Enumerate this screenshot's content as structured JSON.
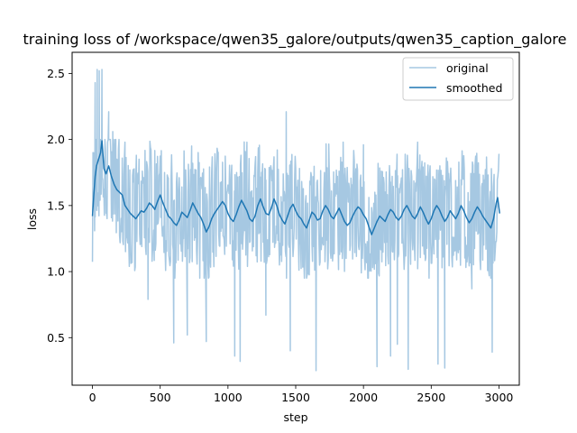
{
  "chart_data": {
    "type": "line",
    "title": "training loss of /workspace/qwen35_galore/outputs/qwen35_caption_galore",
    "xlabel": "step",
    "ylabel": "loss",
    "xlim": [
      -150,
      3150
    ],
    "ylim": [
      0.14,
      2.66
    ],
    "xticks": [
      0,
      500,
      1000,
      1500,
      2000,
      2500,
      3000
    ],
    "yticks": [
      0.5,
      1.0,
      1.5,
      2.0,
      2.5
    ],
    "xtick_labels": [
      "0",
      "500",
      "1000",
      "1500",
      "2000",
      "2500",
      "3000"
    ],
    "ytick_labels": [
      "0.5",
      "1.0",
      "1.5",
      "2.0",
      "2.5"
    ],
    "grid": false,
    "legend": {
      "position": "top-right"
    },
    "x_range": [
      0,
      3000
    ],
    "series": [
      {
        "name": "original",
        "color": "#a6c8e2",
        "style": "noisy raw loss, mean ~1.45, oscillating roughly between 1.0 and 2.0",
        "spikes": [
          {
            "x": 20,
            "y": 2.43
          },
          {
            "x": 35,
            "y": 2.53
          },
          {
            "x": 50,
            "y": 2.52
          },
          {
            "x": 70,
            "y": 2.53
          },
          {
            "x": 120,
            "y": 2.21
          },
          {
            "x": 150,
            "y": 2.06
          },
          {
            "x": 240,
            "y": 1.98
          },
          {
            "x": 410,
            "y": 0.79
          },
          {
            "x": 600,
            "y": 0.46
          },
          {
            "x": 700,
            "y": 0.52
          },
          {
            "x": 840,
            "y": 0.47
          },
          {
            "x": 1050,
            "y": 0.36
          },
          {
            "x": 1090,
            "y": 0.32
          },
          {
            "x": 1140,
            "y": 1.98
          },
          {
            "x": 1280,
            "y": 0.67
          },
          {
            "x": 1430,
            "y": 2.21
          },
          {
            "x": 1460,
            "y": 0.4
          },
          {
            "x": 1650,
            "y": 0.25
          },
          {
            "x": 1850,
            "y": 1.98
          },
          {
            "x": 2000,
            "y": 1.96
          },
          {
            "x": 2100,
            "y": 0.28
          },
          {
            "x": 2200,
            "y": 0.36
          },
          {
            "x": 2250,
            "y": 0.45
          },
          {
            "x": 2330,
            "y": 0.26
          },
          {
            "x": 2400,
            "y": 1.98
          },
          {
            "x": 2550,
            "y": 0.3
          },
          {
            "x": 2600,
            "y": 0.27
          },
          {
            "x": 2800,
            "y": 0.87
          },
          {
            "x": 2950,
            "y": 0.39
          }
        ]
      },
      {
        "name": "smoothed",
        "color": "#1f77b4",
        "points": [
          [
            0,
            1.42
          ],
          [
            10,
            1.58
          ],
          [
            20,
            1.72
          ],
          [
            30,
            1.8
          ],
          [
            45,
            1.85
          ],
          [
            60,
            1.9
          ],
          [
            70,
            1.99
          ],
          [
            85,
            1.78
          ],
          [
            100,
            1.74
          ],
          [
            120,
            1.8
          ],
          [
            140,
            1.72
          ],
          [
            160,
            1.66
          ],
          [
            180,
            1.62
          ],
          [
            200,
            1.6
          ],
          [
            220,
            1.58
          ],
          [
            240,
            1.5
          ],
          [
            260,
            1.47
          ],
          [
            280,
            1.44
          ],
          [
            300,
            1.42
          ],
          [
            320,
            1.4
          ],
          [
            340,
            1.43
          ],
          [
            360,
            1.46
          ],
          [
            380,
            1.45
          ],
          [
            400,
            1.48
          ],
          [
            420,
            1.52
          ],
          [
            440,
            1.5
          ],
          [
            460,
            1.47
          ],
          [
            480,
            1.53
          ],
          [
            500,
            1.58
          ],
          [
            520,
            1.52
          ],
          [
            540,
            1.47
          ],
          [
            560,
            1.42
          ],
          [
            580,
            1.4
          ],
          [
            600,
            1.37
          ],
          [
            620,
            1.35
          ],
          [
            640,
            1.39
          ],
          [
            660,
            1.45
          ],
          [
            680,
            1.43
          ],
          [
            700,
            1.41
          ],
          [
            720,
            1.46
          ],
          [
            740,
            1.52
          ],
          [
            760,
            1.48
          ],
          [
            780,
            1.44
          ],
          [
            800,
            1.41
          ],
          [
            820,
            1.36
          ],
          [
            840,
            1.3
          ],
          [
            860,
            1.34
          ],
          [
            880,
            1.4
          ],
          [
            900,
            1.44
          ],
          [
            920,
            1.47
          ],
          [
            940,
            1.5
          ],
          [
            960,
            1.53
          ],
          [
            980,
            1.5
          ],
          [
            1000,
            1.44
          ],
          [
            1020,
            1.4
          ],
          [
            1040,
            1.38
          ],
          [
            1060,
            1.43
          ],
          [
            1080,
            1.49
          ],
          [
            1100,
            1.54
          ],
          [
            1120,
            1.5
          ],
          [
            1140,
            1.46
          ],
          [
            1160,
            1.4
          ],
          [
            1180,
            1.38
          ],
          [
            1200,
            1.42
          ],
          [
            1220,
            1.5
          ],
          [
            1240,
            1.55
          ],
          [
            1260,
            1.49
          ],
          [
            1280,
            1.44
          ],
          [
            1300,
            1.43
          ],
          [
            1320,
            1.48
          ],
          [
            1340,
            1.55
          ],
          [
            1360,
            1.5
          ],
          [
            1380,
            1.43
          ],
          [
            1400,
            1.39
          ],
          [
            1420,
            1.36
          ],
          [
            1440,
            1.42
          ],
          [
            1460,
            1.48
          ],
          [
            1480,
            1.51
          ],
          [
            1500,
            1.46
          ],
          [
            1520,
            1.42
          ],
          [
            1540,
            1.4
          ],
          [
            1560,
            1.36
          ],
          [
            1580,
            1.33
          ],
          [
            1600,
            1.39
          ],
          [
            1620,
            1.45
          ],
          [
            1640,
            1.43
          ],
          [
            1660,
            1.39
          ],
          [
            1680,
            1.4
          ],
          [
            1700,
            1.46
          ],
          [
            1720,
            1.5
          ],
          [
            1740,
            1.47
          ],
          [
            1760,
            1.42
          ],
          [
            1780,
            1.4
          ],
          [
            1800,
            1.44
          ],
          [
            1820,
            1.48
          ],
          [
            1840,
            1.43
          ],
          [
            1860,
            1.38
          ],
          [
            1880,
            1.35
          ],
          [
            1900,
            1.37
          ],
          [
            1920,
            1.42
          ],
          [
            1940,
            1.46
          ],
          [
            1960,
            1.49
          ],
          [
            1980,
            1.47
          ],
          [
            2000,
            1.43
          ],
          [
            2020,
            1.4
          ],
          [
            2040,
            1.34
          ],
          [
            2060,
            1.28
          ],
          [
            2080,
            1.33
          ],
          [
            2100,
            1.38
          ],
          [
            2120,
            1.42
          ],
          [
            2140,
            1.4
          ],
          [
            2160,
            1.38
          ],
          [
            2180,
            1.43
          ],
          [
            2200,
            1.47
          ],
          [
            2220,
            1.45
          ],
          [
            2240,
            1.41
          ],
          [
            2260,
            1.39
          ],
          [
            2280,
            1.42
          ],
          [
            2300,
            1.47
          ],
          [
            2320,
            1.5
          ],
          [
            2340,
            1.46
          ],
          [
            2360,
            1.42
          ],
          [
            2380,
            1.4
          ],
          [
            2400,
            1.44
          ],
          [
            2420,
            1.49
          ],
          [
            2440,
            1.45
          ],
          [
            2460,
            1.4
          ],
          [
            2480,
            1.36
          ],
          [
            2500,
            1.4
          ],
          [
            2520,
            1.46
          ],
          [
            2540,
            1.5
          ],
          [
            2560,
            1.47
          ],
          [
            2580,
            1.42
          ],
          [
            2600,
            1.38
          ],
          [
            2620,
            1.41
          ],
          [
            2640,
            1.46
          ],
          [
            2660,
            1.43
          ],
          [
            2680,
            1.4
          ],
          [
            2700,
            1.44
          ],
          [
            2720,
            1.5
          ],
          [
            2740,
            1.46
          ],
          [
            2760,
            1.41
          ],
          [
            2780,
            1.37
          ],
          [
            2800,
            1.4
          ],
          [
            2820,
            1.45
          ],
          [
            2840,
            1.49
          ],
          [
            2860,
            1.46
          ],
          [
            2880,
            1.42
          ],
          [
            2900,
            1.39
          ],
          [
            2920,
            1.36
          ],
          [
            2940,
            1.33
          ],
          [
            2960,
            1.4
          ],
          [
            2980,
            1.52
          ],
          [
            2990,
            1.56
          ],
          [
            3000,
            1.48
          ],
          [
            3005,
            1.44
          ]
        ]
      }
    ]
  }
}
